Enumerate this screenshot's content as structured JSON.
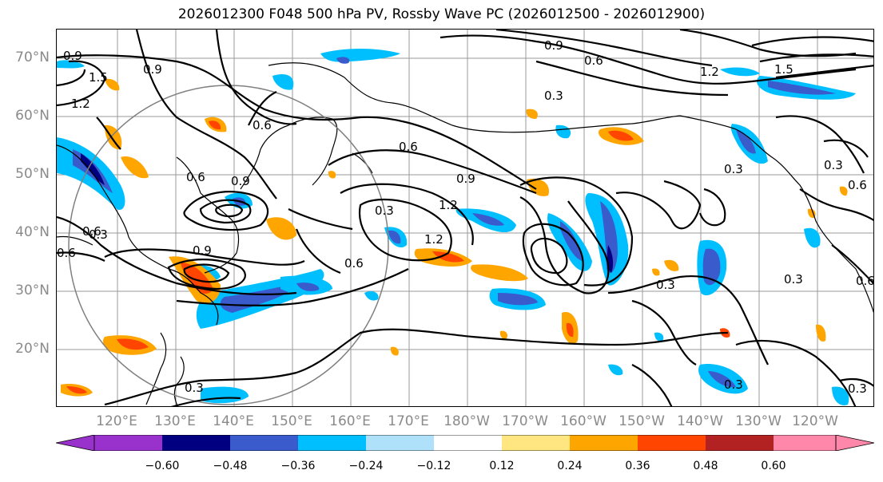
{
  "title": "2026012300 F048 500 hPa PV, Rossby Wave PC (2026012500 - 2026012900)",
  "map": {
    "lat_labels": [
      "70°N",
      "60°N",
      "50°N",
      "40°N",
      "30°N",
      "20°N"
    ],
    "lon_labels": [
      "120°E",
      "130°E",
      "140°E",
      "150°E",
      "160°E",
      "170°E",
      "180°W",
      "170°W",
      "160°W",
      "150°W",
      "140°W",
      "130°W",
      "120°W"
    ],
    "contour_labels": [
      "0.9",
      "1.2",
      "1.5",
      "0.9",
      "0.6",
      "0.6",
      "0.9",
      "0.6",
      "0.9",
      "0.6",
      "0.3",
      "0.3",
      "0.3",
      "0.6",
      "0.9",
      "1.2",
      "1.2",
      "0.3",
      "0.6",
      "0.9",
      "1.2",
      "1.5",
      "0.3",
      "0.3",
      "0.6",
      "0.3",
      "0.3",
      "0.3",
      "0.6",
      "0.6",
      "0.3"
    ]
  },
  "colorbar": {
    "ticks": [
      "−0.60",
      "−0.48",
      "−0.36",
      "−0.24",
      "−0.12",
      "0.12",
      "0.24",
      "0.36",
      "0.48",
      "0.60"
    ],
    "colors": [
      "#9932cc",
      "#000080",
      "#3a5bcc",
      "#00bfff",
      "#afe1fa",
      "#ffffff",
      "#ffe681",
      "#ffa500",
      "#ff4500",
      "#b22222",
      "#ff88aa"
    ]
  }
}
